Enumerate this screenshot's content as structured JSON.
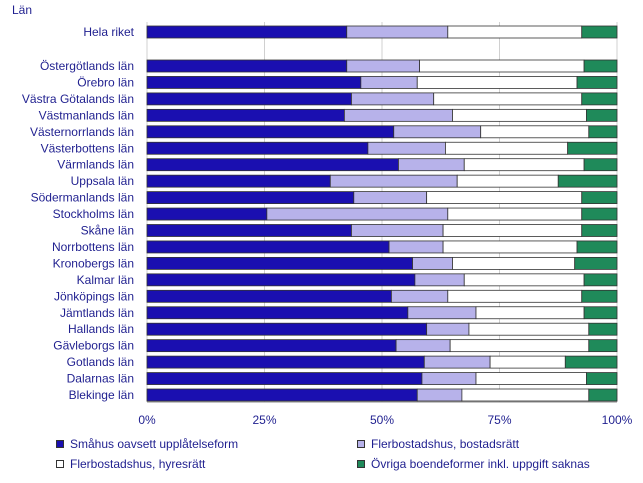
{
  "chart_data": {
    "type": "bar",
    "orientation": "horizontal",
    "stacked": true,
    "normalized_percent": true,
    "ylabel": "Län",
    "xlim": [
      0,
      100
    ],
    "xticks": [
      "0%",
      "25%",
      "50%",
      "75%",
      "100%"
    ],
    "grid": "vertical",
    "legend_placement": "bottom",
    "categories": [
      "Hela riket",
      "Östergötlands län",
      "Örebro län",
      "Västra Götalands län",
      "Västmanlands län",
      "Västernorrlands län",
      "Västerbottens län",
      "Värmlands län",
      "Uppsala län",
      "Södermanlands län",
      "Stockholms län",
      "Skåne län",
      "Norrbottens län",
      "Kronobergs län",
      "Kalmar län",
      "Jönköpings län",
      "Jämtlands län",
      "Hallands län",
      "Gävleborgs län",
      "Gotlands län",
      "Dalarnas län",
      "Blekinge län"
    ],
    "series": [
      {
        "name": "Småhus oavsett upplåtelseform",
        "color": "#1a0fb0",
        "values": [
          42.5,
          42.5,
          45.5,
          43.5,
          42.0,
          52.5,
          47.0,
          53.5,
          39.0,
          44.0,
          25.5,
          43.5,
          51.5,
          56.5,
          57.0,
          52.0,
          55.5,
          59.5,
          53.0,
          59.0,
          58.5,
          57.5
        ]
      },
      {
        "name": "Flerbostadshus, bostadsrätt",
        "color": "#b7b2ea",
        "values": [
          21.5,
          15.5,
          12.0,
          17.5,
          23.0,
          18.5,
          16.5,
          14.0,
          27.0,
          15.5,
          38.5,
          19.5,
          11.5,
          8.5,
          10.5,
          12.0,
          14.5,
          9.0,
          11.5,
          14.0,
          11.5,
          9.5
        ]
      },
      {
        "name": "Flerbostadshus, hyresrätt",
        "color": "#ffffff",
        "values": [
          28.5,
          35.0,
          34.0,
          31.5,
          28.5,
          23.0,
          26.0,
          25.5,
          21.5,
          33.0,
          28.5,
          29.5,
          28.5,
          26.0,
          25.5,
          28.5,
          23.0,
          25.5,
          29.5,
          16.0,
          23.5,
          27.0
        ]
      },
      {
        "name": "Övriga boendeformer inkl. uppgift saknas",
        "color": "#1f8a5a",
        "values": [
          7.5,
          7.0,
          8.5,
          7.5,
          6.5,
          6.0,
          10.5,
          7.0,
          12.5,
          7.5,
          7.5,
          7.5,
          8.5,
          9.0,
          7.0,
          7.5,
          7.0,
          6.0,
          6.0,
          11.0,
          6.5,
          6.0
        ]
      }
    ]
  }
}
